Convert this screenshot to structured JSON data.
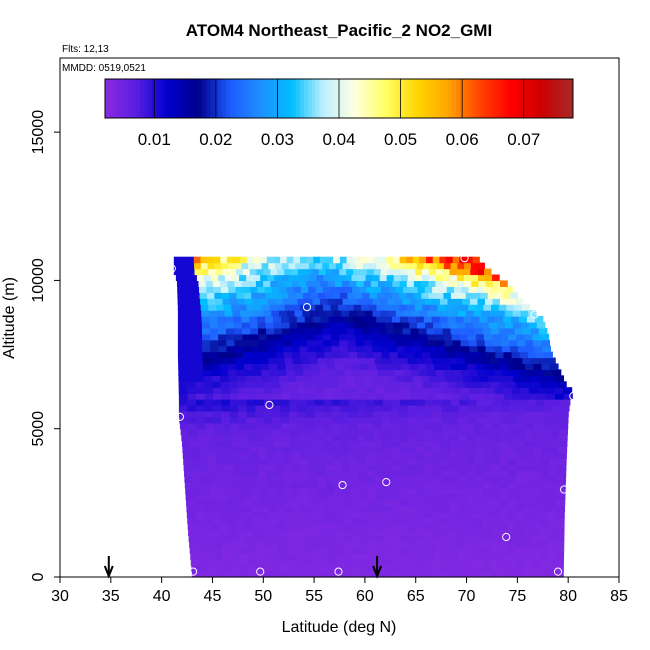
{
  "chart_data": {
    "type": "heatmap",
    "title": "ATOM4 Northeast_Pacific_2 NO2_GMI",
    "annotations": [
      "Flts: 12,13",
      "MMDD: 0519,0521"
    ],
    "xlabel": "Latitude (deg N)",
    "ylabel": "Altitude (m)",
    "xlim": [
      30,
      85
    ],
    "ylim": [
      0,
      17500
    ],
    "x_ticks": [
      30,
      35,
      40,
      45,
      50,
      55,
      60,
      65,
      70,
      75,
      80,
      85
    ],
    "y_ticks": [
      0,
      5000,
      10000,
      15000
    ],
    "grid": false,
    "colorbar": {
      "placement": "top",
      "range": [
        0.002,
        0.078
      ],
      "ticks": [
        0.01,
        0.02,
        0.03,
        0.04,
        0.05,
        0.06,
        0.07
      ],
      "tick_labels": [
        "0.01",
        "0.02",
        "0.03",
        "0.04",
        "0.05",
        "0.06",
        "0.07"
      ],
      "colors": [
        "#8a2be2",
        "#5a1ee0",
        "#0000cd",
        "#00008b",
        "#1e5aff",
        "#1e90ff",
        "#00bfff",
        "#bfefff",
        "#ffffe0",
        "#ffff66",
        "#ffd700",
        "#ffa500",
        "#ff4500",
        "#ff0000",
        "#cd0000",
        "#a52a2a"
      ]
    },
    "curtain": {
      "lat_left": [
        [
          0,
          43.0
        ],
        [
          1500,
          42.6
        ],
        [
          3000,
          42.3
        ],
        [
          4500,
          42.0
        ],
        [
          5400,
          41.7
        ],
        [
          6000,
          41.7
        ],
        [
          7500,
          41.6
        ],
        [
          9000,
          41.6
        ],
        [
          10000,
          41.5
        ],
        [
          10300,
          41.2
        ],
        [
          10500,
          41.2
        ]
      ],
      "lat_right": [
        [
          0,
          79.5
        ],
        [
          2000,
          79.6
        ],
        [
          4000,
          79.8
        ],
        [
          5500,
          80.0
        ],
        [
          6000,
          80.2
        ],
        [
          6200,
          80.6
        ],
        [
          6500,
          79.8
        ],
        [
          7100,
          79.0
        ],
        [
          7600,
          78.3
        ],
        [
          8200,
          78.0
        ],
        [
          8700,
          77.5
        ],
        [
          9300,
          75.5
        ],
        [
          9900,
          74.0
        ],
        [
          10400,
          72.0
        ],
        [
          10800,
          71.0
        ]
      ],
      "top_altitude": 10800,
      "no2_profile": [
        [
          0,
          0.003
        ],
        [
          2000,
          0.004
        ],
        [
          4000,
          0.005
        ],
        [
          5200,
          0.006
        ],
        [
          5800,
          0.008
        ],
        [
          6600,
          0.012
        ],
        [
          7400,
          0.019
        ],
        [
          8200,
          0.026
        ],
        [
          8900,
          0.033
        ],
        [
          9600,
          0.04
        ],
        [
          10100,
          0.05
        ],
        [
          10500,
          0.063
        ]
      ]
    },
    "flight_points": [
      {
        "lat": 41.0,
        "alt": 10400
      },
      {
        "lat": 46.5,
        "alt": 10250
      },
      {
        "lat": 54.3,
        "alt": 9100
      },
      {
        "lat": 69.8,
        "alt": 10750
      },
      {
        "lat": 76.7,
        "alt": 8850
      },
      {
        "lat": 80.5,
        "alt": 6100
      },
      {
        "lat": 41.8,
        "alt": 5400
      },
      {
        "lat": 50.6,
        "alt": 5800
      },
      {
        "lat": 57.8,
        "alt": 3100
      },
      {
        "lat": 62.1,
        "alt": 3200
      },
      {
        "lat": 79.6,
        "alt": 2950
      },
      {
        "lat": 73.9,
        "alt": 1350
      },
      {
        "lat": 43.1,
        "alt": 180
      },
      {
        "lat": 49.7,
        "alt": 180
      },
      {
        "lat": 57.4,
        "alt": 180
      },
      {
        "lat": 79.0,
        "alt": 180
      }
    ],
    "markers": [
      {
        "lat": 34.8
      },
      {
        "lat": 61.2
      }
    ]
  }
}
